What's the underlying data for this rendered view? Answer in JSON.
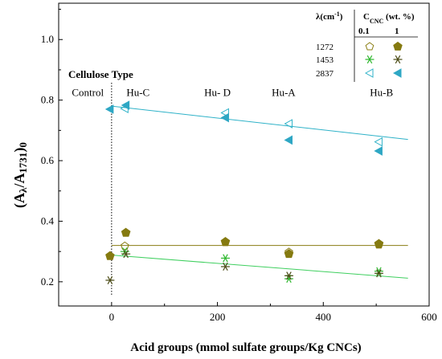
{
  "chart_data": {
    "type": "scatter",
    "xlabel": "Acid groups (mmol sulfate groups/Kg CNCs)",
    "ylabel_main": "(A",
    "ylabel_sub1": "λ",
    "ylabel_mid": "/A",
    "ylabel_sub2": "1731",
    "ylabel_end": ")",
    "ylabel_sub3": "0",
    "xlim": [
      -100,
      600
    ],
    "ylim": [
      0.12,
      1.12
    ],
    "xticks": [
      0,
      200,
      400,
      600
    ],
    "yticks": [
      0.2,
      0.4,
      0.6,
      0.8,
      1.0
    ],
    "xtick_labels": [
      "0",
      "200",
      "400",
      "600"
    ],
    "ytick_labels": [
      "0.2",
      "0.4",
      "0.6",
      "0.8",
      "1.0"
    ],
    "grid": false,
    "legend_position": "top-right",
    "vline_x": 0,
    "annotations": {
      "cellulose_type": "Cellulose Type",
      "labels": [
        {
          "text": "Control",
          "x": -45,
          "y": 0.813
        },
        {
          "text": "Hu-C",
          "x": 50,
          "y": 0.813
        },
        {
          "text": "Hu- D",
          "x": 200,
          "y": 0.813
        },
        {
          "text": "Hu-A",
          "x": 325,
          "y": 0.813
        },
        {
          "text": "Hu-B",
          "x": 510,
          "y": 0.813
        }
      ]
    },
    "legend": {
      "header_lambda": "λ(cm",
      "header_lambda_sup": "-1",
      "header_lambda_end": ")",
      "header_c": "C",
      "header_c_sub": "CNC",
      "header_c_end": " (wt. %)",
      "col1": "0.1",
      "col2": "1",
      "rows": [
        "1272",
        "1453",
        "2837"
      ]
    },
    "series": [
      {
        "wavenumber": "1272",
        "concentration": "0.1",
        "marker": "pentagon-open",
        "color": "#8a7d12",
        "points": [
          {
            "x": 25,
            "y": 0.318
          },
          {
            "x": 215,
            "y": 0.33
          },
          {
            "x": 335,
            "y": 0.298
          },
          {
            "x": 505,
            "y": 0.322
          }
        ]
      },
      {
        "wavenumber": "1272",
        "concentration": "1",
        "marker": "pentagon-filled",
        "color": "#857a10",
        "points": [
          {
            "x": -3,
            "y": 0.285
          },
          {
            "x": 27,
            "y": 0.362
          },
          {
            "x": 215,
            "y": 0.332
          },
          {
            "x": 335,
            "y": 0.292
          },
          {
            "x": 505,
            "y": 0.325
          }
        ]
      },
      {
        "wavenumber": "1453",
        "concentration": "0.1",
        "marker": "asterisk",
        "color": "#2fb82f",
        "points": [
          {
            "x": 25,
            "y": 0.3
          },
          {
            "x": 215,
            "y": 0.278
          },
          {
            "x": 335,
            "y": 0.21
          },
          {
            "x": 505,
            "y": 0.235
          }
        ]
      },
      {
        "wavenumber": "1453",
        "concentration": "1",
        "marker": "asterisk",
        "color": "#4a4a14",
        "points": [
          {
            "x": -3,
            "y": 0.205
          },
          {
            "x": 27,
            "y": 0.292
          },
          {
            "x": 215,
            "y": 0.25
          },
          {
            "x": 335,
            "y": 0.22
          },
          {
            "x": 505,
            "y": 0.228
          }
        ]
      },
      {
        "wavenumber": "2837",
        "concentration": "0.1",
        "marker": "triangle-left-open",
        "color": "#2fb2c8",
        "points": [
          {
            "x": 25,
            "y": 0.772
          },
          {
            "x": 215,
            "y": 0.758
          },
          {
            "x": 335,
            "y": 0.722
          },
          {
            "x": 505,
            "y": 0.662
          }
        ]
      },
      {
        "wavenumber": "2837",
        "concentration": "1",
        "marker": "triangle-left-filled",
        "color": "#2ea7c4",
        "points": [
          {
            "x": -3,
            "y": 0.77
          },
          {
            "x": 27,
            "y": 0.783
          },
          {
            "x": 215,
            "y": 0.742
          },
          {
            "x": 335,
            "y": 0.668
          },
          {
            "x": 505,
            "y": 0.632
          }
        ]
      }
    ],
    "fit_lines": [
      {
        "name": "1272 fit",
        "color": "#8a7d12",
        "x": [
          0,
          560
        ],
        "y": [
          0.32,
          0.32
        ]
      },
      {
        "name": "1453 fit",
        "color": "#3fcf5f",
        "x": [
          0,
          560
        ],
        "y": [
          0.288,
          0.212
        ]
      },
      {
        "name": "2837 fit",
        "color": "#2fb2c8",
        "x": [
          0,
          560
        ],
        "y": [
          0.78,
          0.67
        ]
      }
    ]
  }
}
